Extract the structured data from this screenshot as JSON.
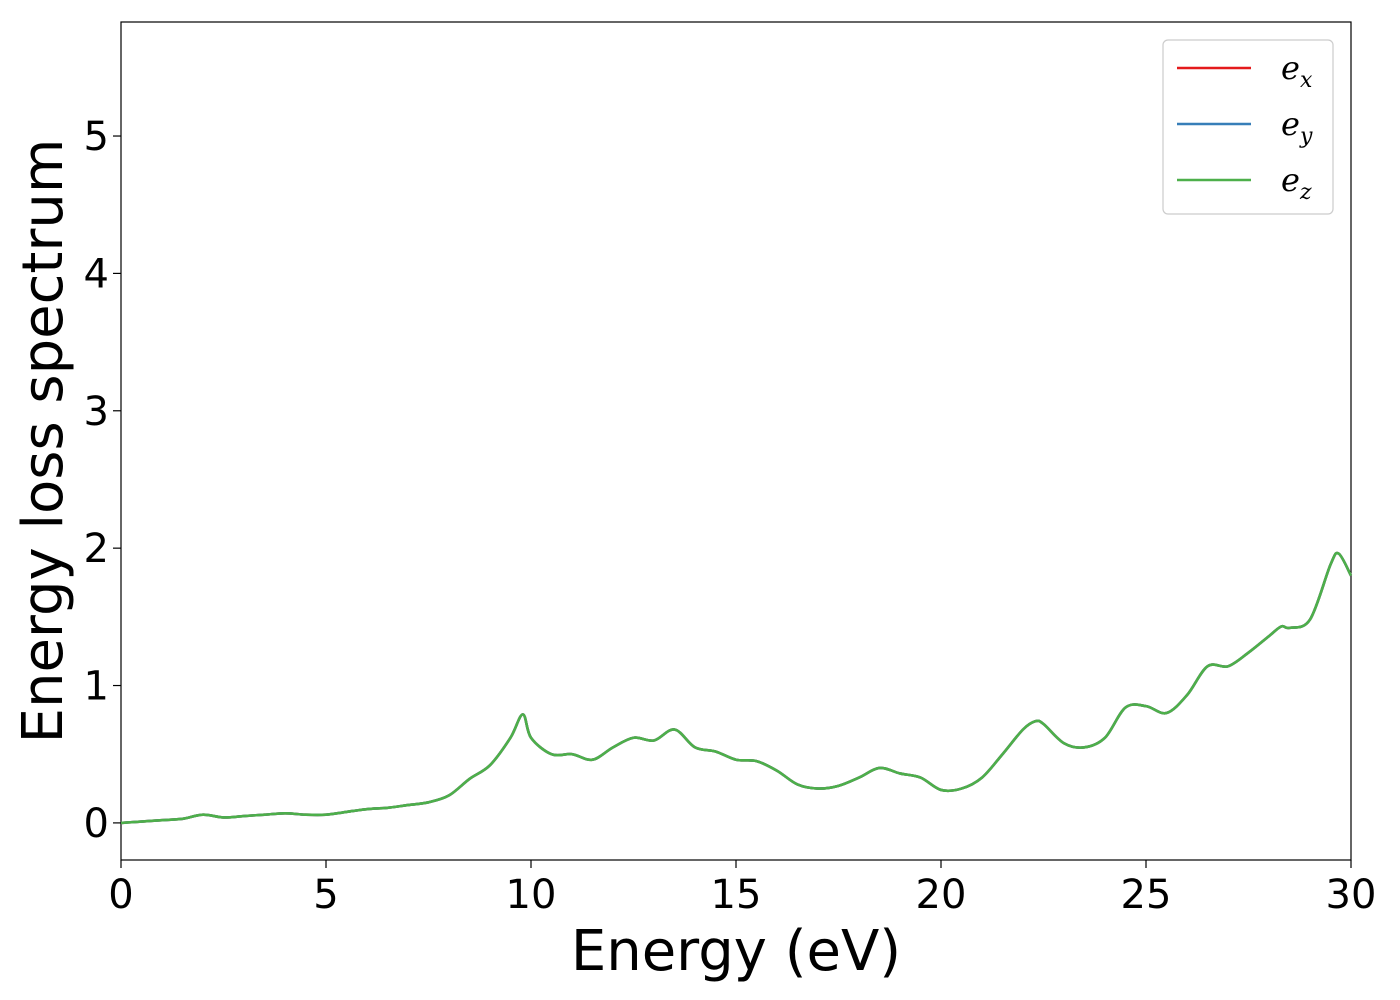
{
  "chart_data": {
    "type": "line",
    "title": "",
    "xlabel": "Energy (eV)",
    "ylabel": "Energy loss spectrum",
    "xlim": [
      0,
      30
    ],
    "ylim": [
      -0.27,
      5.83
    ],
    "xticks": [
      0,
      5,
      10,
      15,
      20,
      25,
      30
    ],
    "yticks": [
      0,
      1,
      2,
      3,
      4,
      5
    ],
    "grid": false,
    "legend_position": "top-right",
    "x": [
      0,
      0.5,
      1,
      1.5,
      2,
      2.5,
      3,
      3.5,
      4,
      4.5,
      5,
      5.5,
      6,
      6.5,
      7,
      7.5,
      8,
      8.5,
      9,
      9.5,
      9.8,
      10,
      10.5,
      11,
      11.5,
      12,
      12.5,
      13,
      13.5,
      14,
      14.5,
      15,
      15.5,
      16,
      16.5,
      17,
      17.5,
      18,
      18.5,
      19,
      19.5,
      20,
      20.5,
      21,
      21.5,
      22,
      22.3,
      22.5,
      23,
      23.5,
      24,
      24.5,
      25,
      25.5,
      26,
      26.5,
      27,
      27.5,
      28,
      28.3,
      28.5,
      29,
      29.5,
      29.7,
      30
    ],
    "series": [
      {
        "name": "e_x",
        "label_base": "e",
        "label_sub": "x",
        "color": "#e41a1c",
        "values": [
          0.0,
          0.01,
          0.02,
          0.03,
          0.06,
          0.04,
          0.05,
          0.06,
          0.07,
          0.06,
          0.06,
          0.08,
          0.1,
          0.11,
          0.13,
          0.15,
          0.2,
          0.32,
          0.42,
          0.62,
          0.79,
          0.62,
          0.5,
          0.5,
          0.46,
          0.55,
          0.62,
          0.6,
          0.68,
          0.55,
          0.52,
          0.46,
          0.45,
          0.38,
          0.28,
          0.25,
          0.27,
          0.33,
          0.4,
          0.36,
          0.33,
          0.24,
          0.25,
          0.33,
          0.5,
          0.68,
          0.74,
          0.72,
          0.58,
          0.55,
          0.62,
          0.84,
          0.85,
          0.8,
          0.93,
          1.14,
          1.14,
          1.24,
          1.36,
          1.43,
          1.42,
          1.48,
          1.88,
          1.96,
          1.8
        ]
      },
      {
        "name": "e_y",
        "label_base": "e",
        "label_sub": "y",
        "color": "#377eb8",
        "values": [
          0.0,
          0.01,
          0.02,
          0.03,
          0.06,
          0.04,
          0.05,
          0.06,
          0.07,
          0.06,
          0.06,
          0.08,
          0.1,
          0.11,
          0.13,
          0.15,
          0.2,
          0.32,
          0.42,
          0.62,
          0.79,
          0.62,
          0.5,
          0.5,
          0.46,
          0.55,
          0.62,
          0.6,
          0.68,
          0.55,
          0.52,
          0.46,
          0.45,
          0.38,
          0.28,
          0.25,
          0.27,
          0.33,
          0.4,
          0.36,
          0.33,
          0.24,
          0.25,
          0.33,
          0.5,
          0.68,
          0.74,
          0.72,
          0.58,
          0.55,
          0.62,
          0.84,
          0.85,
          0.8,
          0.93,
          1.14,
          1.14,
          1.24,
          1.36,
          1.43,
          1.42,
          1.48,
          1.88,
          1.96,
          1.8
        ]
      },
      {
        "name": "e_z",
        "label_base": "e",
        "label_sub": "z",
        "color": "#4daf4a",
        "values": [
          0.0,
          0.01,
          0.02,
          0.03,
          0.06,
          0.04,
          0.05,
          0.06,
          0.07,
          0.06,
          0.06,
          0.08,
          0.1,
          0.11,
          0.13,
          0.15,
          0.2,
          0.32,
          0.42,
          0.62,
          0.79,
          0.62,
          0.5,
          0.5,
          0.46,
          0.55,
          0.62,
          0.6,
          0.68,
          0.55,
          0.52,
          0.46,
          0.45,
          0.38,
          0.28,
          0.25,
          0.27,
          0.33,
          0.4,
          0.36,
          0.33,
          0.24,
          0.25,
          0.33,
          0.5,
          0.68,
          0.74,
          0.72,
          0.58,
          0.55,
          0.62,
          0.84,
          0.85,
          0.8,
          0.93,
          1.14,
          1.14,
          1.24,
          1.36,
          1.43,
          1.42,
          1.48,
          1.88,
          1.96,
          1.8
        ]
      }
    ]
  }
}
